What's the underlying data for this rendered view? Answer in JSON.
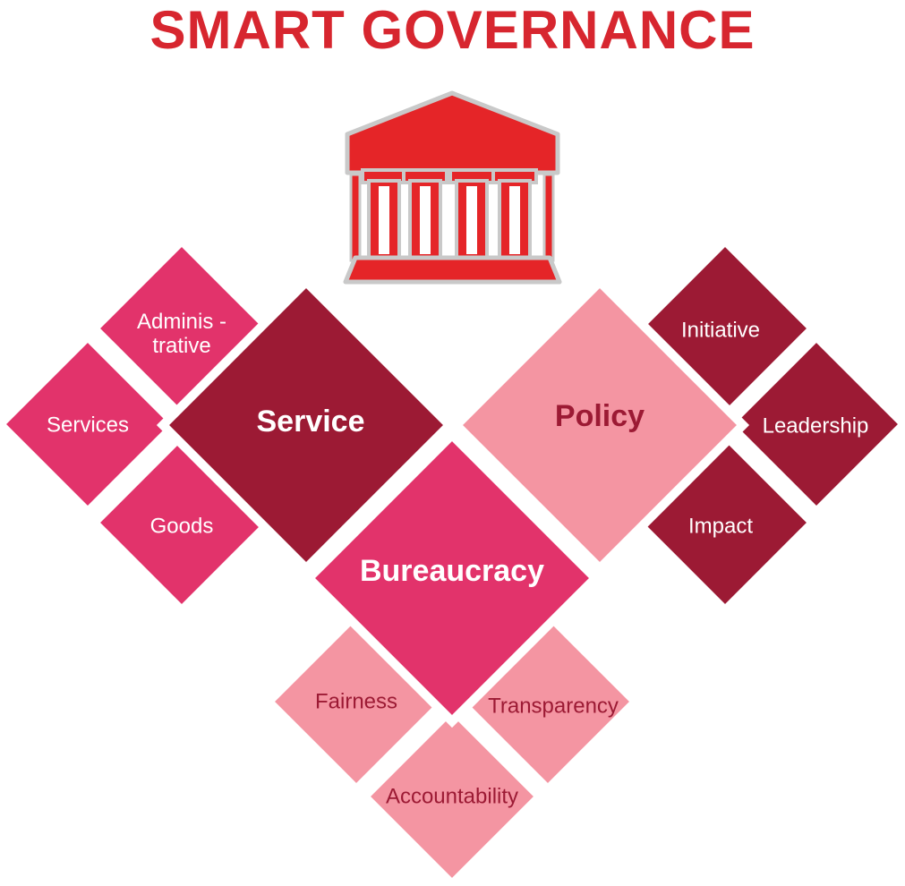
{
  "title": "SMART GOVERNANCE",
  "colors": {
    "title": "#d7262f",
    "icon_fill": "#e52528",
    "icon_outline": "#c9c9c9",
    "dark": "#9c1a34",
    "medium": "#e2336b",
    "light": "#f495a2",
    "text_white": "#ffffff",
    "text_dark": "#9c1a34"
  },
  "icon": "government-building-icon",
  "groups": [
    {
      "id": "service",
      "label": "Service",
      "color": "dark",
      "items": [
        {
          "lines": [
            "Adminis -",
            "trative"
          ],
          "color": "medium"
        },
        {
          "lines": [
            "Services"
          ],
          "color": "medium"
        },
        {
          "lines": [
            "Goods"
          ],
          "color": "medium"
        }
      ]
    },
    {
      "id": "policy",
      "label": "Policy",
      "color": "light",
      "items": [
        {
          "lines": [
            "Initiative"
          ],
          "color": "dark"
        },
        {
          "lines": [
            "Leadership"
          ],
          "color": "dark"
        },
        {
          "lines": [
            "Impact"
          ],
          "color": "dark"
        }
      ]
    },
    {
      "id": "bureaucracy",
      "label": "Bureaucracy",
      "color": "medium",
      "items": [
        {
          "lines": [
            "Fairness"
          ],
          "color": "light"
        },
        {
          "lines": [
            "Transparency"
          ],
          "color": "light"
        },
        {
          "lines": [
            "Accountability"
          ],
          "color": "light"
        }
      ]
    }
  ]
}
